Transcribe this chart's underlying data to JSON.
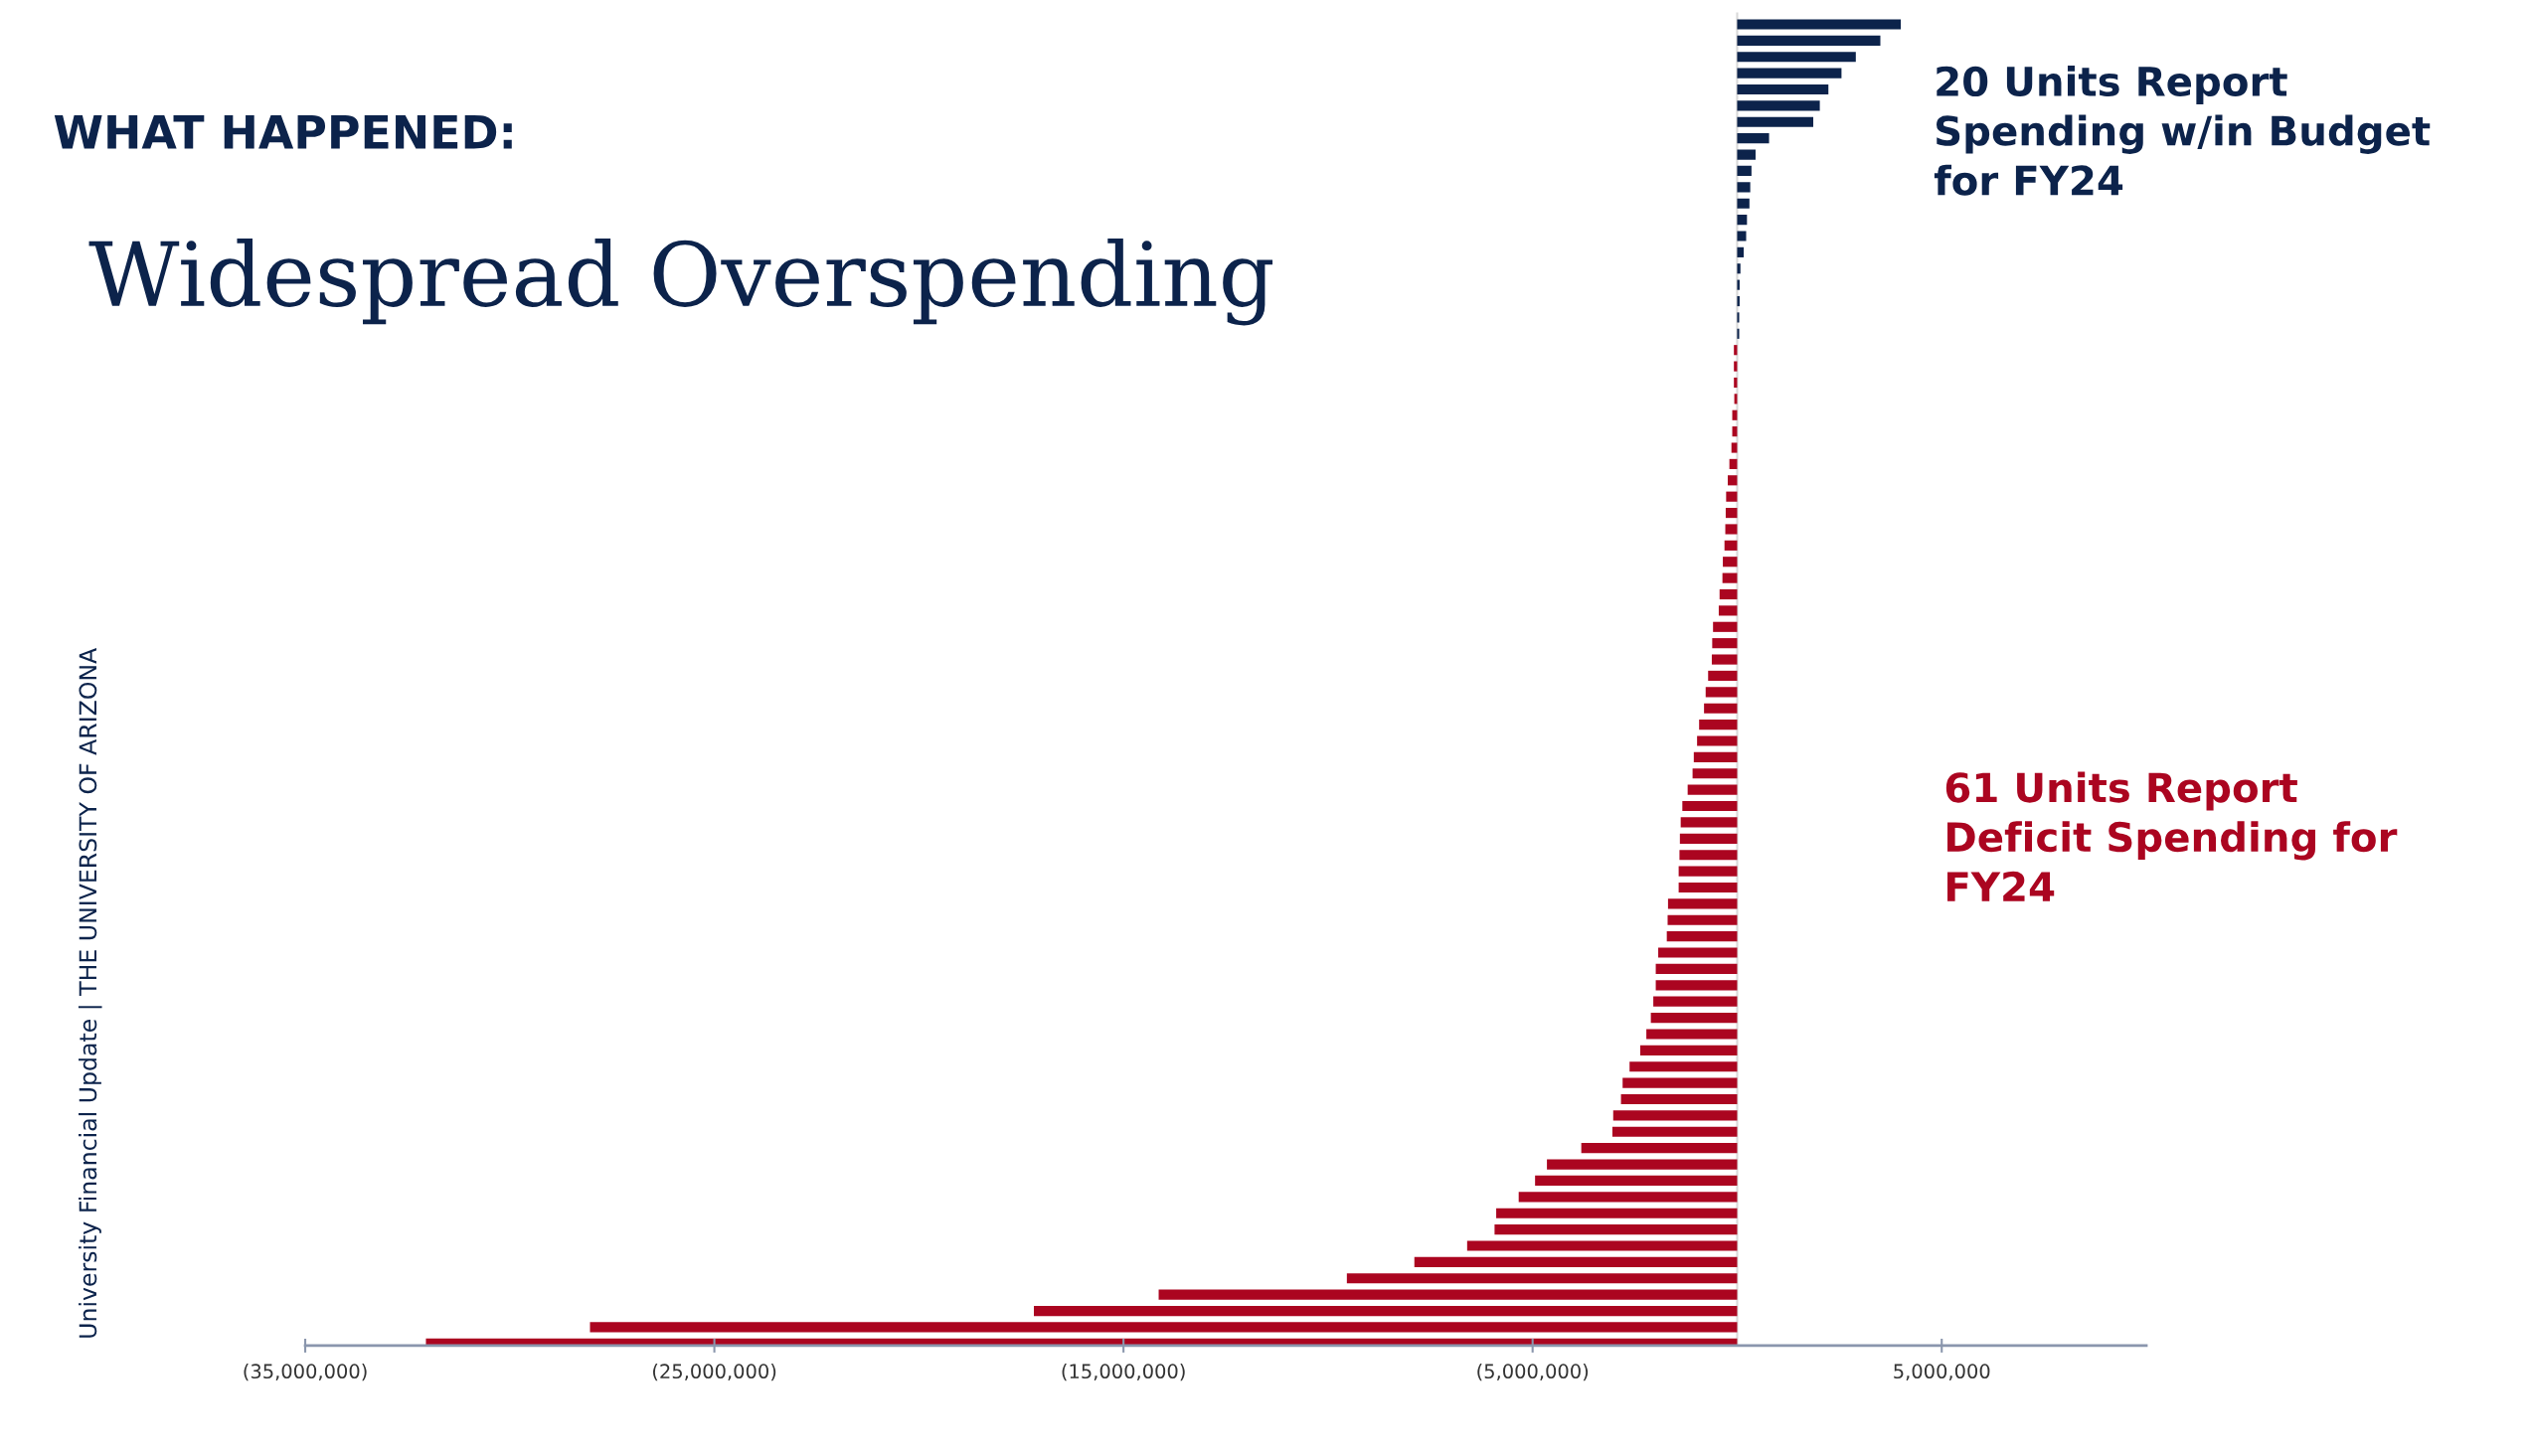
{
  "chart_data": {
    "type": "bar",
    "orientation": "horizontal",
    "subtitle": "WHAT HAPPENED:",
    "title": "Widespread Overspending",
    "categories": [
      null,
      null,
      null,
      null,
      null,
      null,
      null,
      null,
      null,
      null,
      null,
      null,
      null,
      null,
      null,
      null,
      null,
      null,
      null,
      null,
      null,
      null,
      null,
      null,
      null,
      null,
      null,
      null,
      null,
      null,
      null,
      null,
      null,
      null,
      null,
      null,
      null,
      null,
      null,
      null,
      null,
      null,
      null,
      null,
      null,
      null,
      null,
      null,
      null,
      null,
      null,
      null,
      null,
      null,
      null,
      null,
      null,
      null,
      null,
      null,
      null,
      null,
      null,
      null,
      null,
      null,
      null,
      null,
      null,
      null,
      null,
      null,
      null,
      null,
      null,
      null,
      null,
      null,
      null,
      null,
      null,
      null
    ],
    "values": [
      4000000,
      3500000,
      2900000,
      2550000,
      2230000,
      2020000,
      1860000,
      780000,
      450000,
      350000,
      320000,
      300000,
      240000,
      220000,
      160000,
      80000,
      60000,
      60000,
      50000,
      50000,
      -80000,
      -80000,
      -80000,
      -70000,
      -120000,
      -120000,
      -140000,
      -190000,
      -230000,
      -270000,
      -280000,
      -290000,
      -310000,
      -350000,
      -360000,
      -430000,
      -450000,
      -590000,
      -610000,
      -620000,
      -710000,
      -770000,
      -810000,
      -930000,
      -980000,
      -1060000,
      -1090000,
      -1210000,
      -1340000,
      -1380000,
      -1400000,
      -1410000,
      -1430000,
      -1430000,
      -1690000,
      -1700000,
      -1720000,
      -1930000,
      -1990000,
      -1990000,
      -2050000,
      -2110000,
      -2220000,
      -2370000,
      -2630000,
      -2800000,
      -2840000,
      -3030000,
      -3050000,
      -3810000,
      -4650000,
      -4940000,
      -5340000,
      -5890000,
      -5930000,
      -6600000,
      -7890000,
      -9540000,
      -14140000,
      -17190000,
      -28040000,
      -32050000
    ],
    "colors": [
      "#0c234b",
      "#0c234b",
      "#0c234b",
      "#0c234b",
      "#0c234b",
      "#0c234b",
      "#0c234b",
      "#0c234b",
      "#0c234b",
      "#0c234b",
      "#0c234b",
      "#0c234b",
      "#0c234b",
      "#0c234b",
      "#0c234b",
      "#0c234b",
      "#0c234b",
      "#0c234b",
      "#0c234b",
      "#0c234b",
      "#ab0520",
      "#ab0520",
      "#ab0520",
      "#ab0520",
      "#ab0520",
      "#ab0520",
      "#ab0520",
      "#ab0520",
      "#ab0520",
      "#ab0520",
      "#ab0520",
      "#ab0520",
      "#ab0520",
      "#ab0520",
      "#ab0520",
      "#ab0520",
      "#ab0520",
      "#ab0520",
      "#ab0520",
      "#ab0520",
      "#ab0520",
      "#ab0520",
      "#ab0520",
      "#ab0520",
      "#ab0520",
      "#ab0520",
      "#ab0520",
      "#ab0520",
      "#ab0520",
      "#ab0520",
      "#ab0520",
      "#ab0520",
      "#ab0520",
      "#ab0520",
      "#ab0520",
      "#ab0520",
      "#ab0520",
      "#ab0520",
      "#ab0520",
      "#ab0520",
      "#ab0520",
      "#ab0520",
      "#ab0520",
      "#ab0520",
      "#ab0520",
      "#ab0520",
      "#ab0520",
      "#ab0520",
      "#ab0520",
      "#ab0520",
      "#ab0520",
      "#ab0520",
      "#ab0520",
      "#ab0520",
      "#ab0520",
      "#ab0520",
      "#ab0520",
      "#ab0520",
      "#ab0520",
      "#ab0520",
      "#ab0520",
      "#ab0520"
    ],
    "xlim": [
      -35000000,
      10000000
    ],
    "grid": false,
    "legend": false,
    "xticks": [
      {
        "value": -35000000,
        "label": "(35,000,000)"
      },
      {
        "value": -25000000,
        "label": "(25,000,000)"
      },
      {
        "value": -15000000,
        "label": "(15,000,000)"
      },
      {
        "value": -5000000,
        "label": "(5,000,000)"
      },
      {
        "value": 5000000,
        "label": "5,000,000"
      }
    ],
    "annotations": [
      "20 Units Report\nSpending w/in Budget\nfor FY24",
      "61 Units Report\nDeficit Spending for\nFY24",
      "University Financial Update | THE UNIVERSITY OF ARIZONA"
    ]
  }
}
